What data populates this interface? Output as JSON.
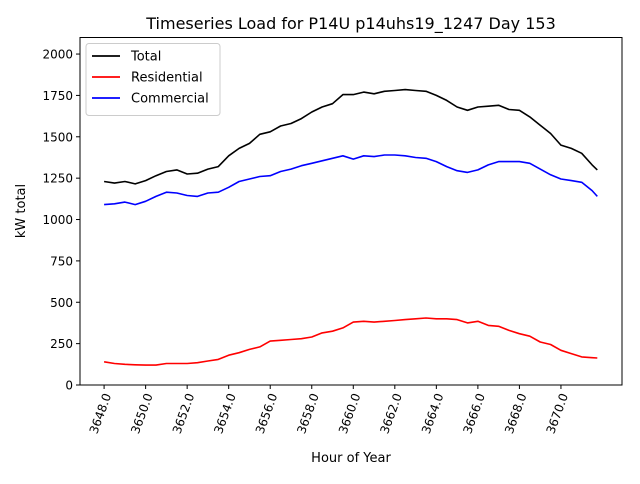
{
  "chart_data": {
    "type": "line",
    "title": "Timeseries Load for P14U p14uhs19_1247  Day 153",
    "xlabel": "Hour of Year",
    "ylabel": "kW total",
    "xlim": [
      3646.84,
      3672.94
    ],
    "ylim": [
      0,
      2100
    ],
    "xticks": [
      3648,
      3650,
      3652,
      3654,
      3656,
      3658,
      3660,
      3662,
      3664,
      3666,
      3668,
      3670
    ],
    "xtick_labels": [
      "3648.0",
      "3650.0",
      "3652.0",
      "3654.0",
      "3656.0",
      "3658.0",
      "3660.0",
      "3662.0",
      "3664.0",
      "3666.0",
      "3668.0",
      "3670.0"
    ],
    "yticks": [
      0,
      250,
      500,
      750,
      1000,
      1250,
      1500,
      1750,
      2000
    ],
    "ytick_labels": [
      "0",
      "250",
      "500",
      "750",
      "1000",
      "1250",
      "1500",
      "1750",
      "2000"
    ],
    "legend_position": "upper-left",
    "grid": false,
    "x": [
      3648,
      3648.5,
      3649,
      3649.5,
      3650,
      3650.5,
      3651,
      3651.5,
      3652,
      3652.5,
      3653,
      3653.5,
      3654,
      3654.5,
      3655,
      3655.5,
      3656,
      3656.5,
      3657,
      3657.5,
      3658,
      3658.5,
      3659,
      3659.5,
      3660,
      3660.5,
      3661,
      3661.5,
      3662,
      3662.5,
      3663,
      3663.5,
      3664,
      3664.5,
      3665,
      3665.5,
      3666,
      3666.5,
      3667,
      3667.5,
      3668,
      3668.5,
      3669,
      3669.5,
      3670,
      3670.5,
      3671,
      3671.5,
      3671.75
    ],
    "series": [
      {
        "name": "Total",
        "color": "#000000",
        "values": [
          1230,
          1220,
          1230,
          1215,
          1235,
          1265,
          1290,
          1300,
          1275,
          1280,
          1305,
          1320,
          1385,
          1430,
          1460,
          1515,
          1530,
          1565,
          1580,
          1610,
          1650,
          1680,
          1700,
          1755,
          1755,
          1770,
          1760,
          1775,
          1780,
          1785,
          1780,
          1775,
          1750,
          1720,
          1680,
          1660,
          1680,
          1685,
          1690,
          1665,
          1660,
          1620,
          1570,
          1520,
          1450,
          1430,
          1400,
          1330,
          1300
        ]
      },
      {
        "name": "Residential",
        "color": "#ff0000",
        "values": [
          140,
          130,
          125,
          122,
          120,
          120,
          130,
          130,
          130,
          135,
          145,
          155,
          180,
          195,
          215,
          230,
          265,
          270,
          275,
          280,
          290,
          315,
          325,
          345,
          380,
          385,
          380,
          385,
          390,
          395,
          400,
          405,
          400,
          400,
          395,
          375,
          385,
          360,
          355,
          330,
          310,
          295,
          260,
          245,
          210,
          190,
          170,
          165,
          163
        ]
      },
      {
        "name": "Commercial",
        "color": "#0000ff",
        "values": [
          1090,
          1095,
          1105,
          1090,
          1110,
          1140,
          1165,
          1160,
          1145,
          1140,
          1160,
          1165,
          1195,
          1230,
          1245,
          1260,
          1265,
          1290,
          1305,
          1325,
          1340,
          1355,
          1370,
          1385,
          1365,
          1385,
          1380,
          1390,
          1390,
          1385,
          1375,
          1370,
          1350,
          1320,
          1295,
          1285,
          1300,
          1330,
          1350,
          1350,
          1350,
          1340,
          1305,
          1270,
          1245,
          1235,
          1225,
          1175,
          1140
        ]
      }
    ]
  }
}
